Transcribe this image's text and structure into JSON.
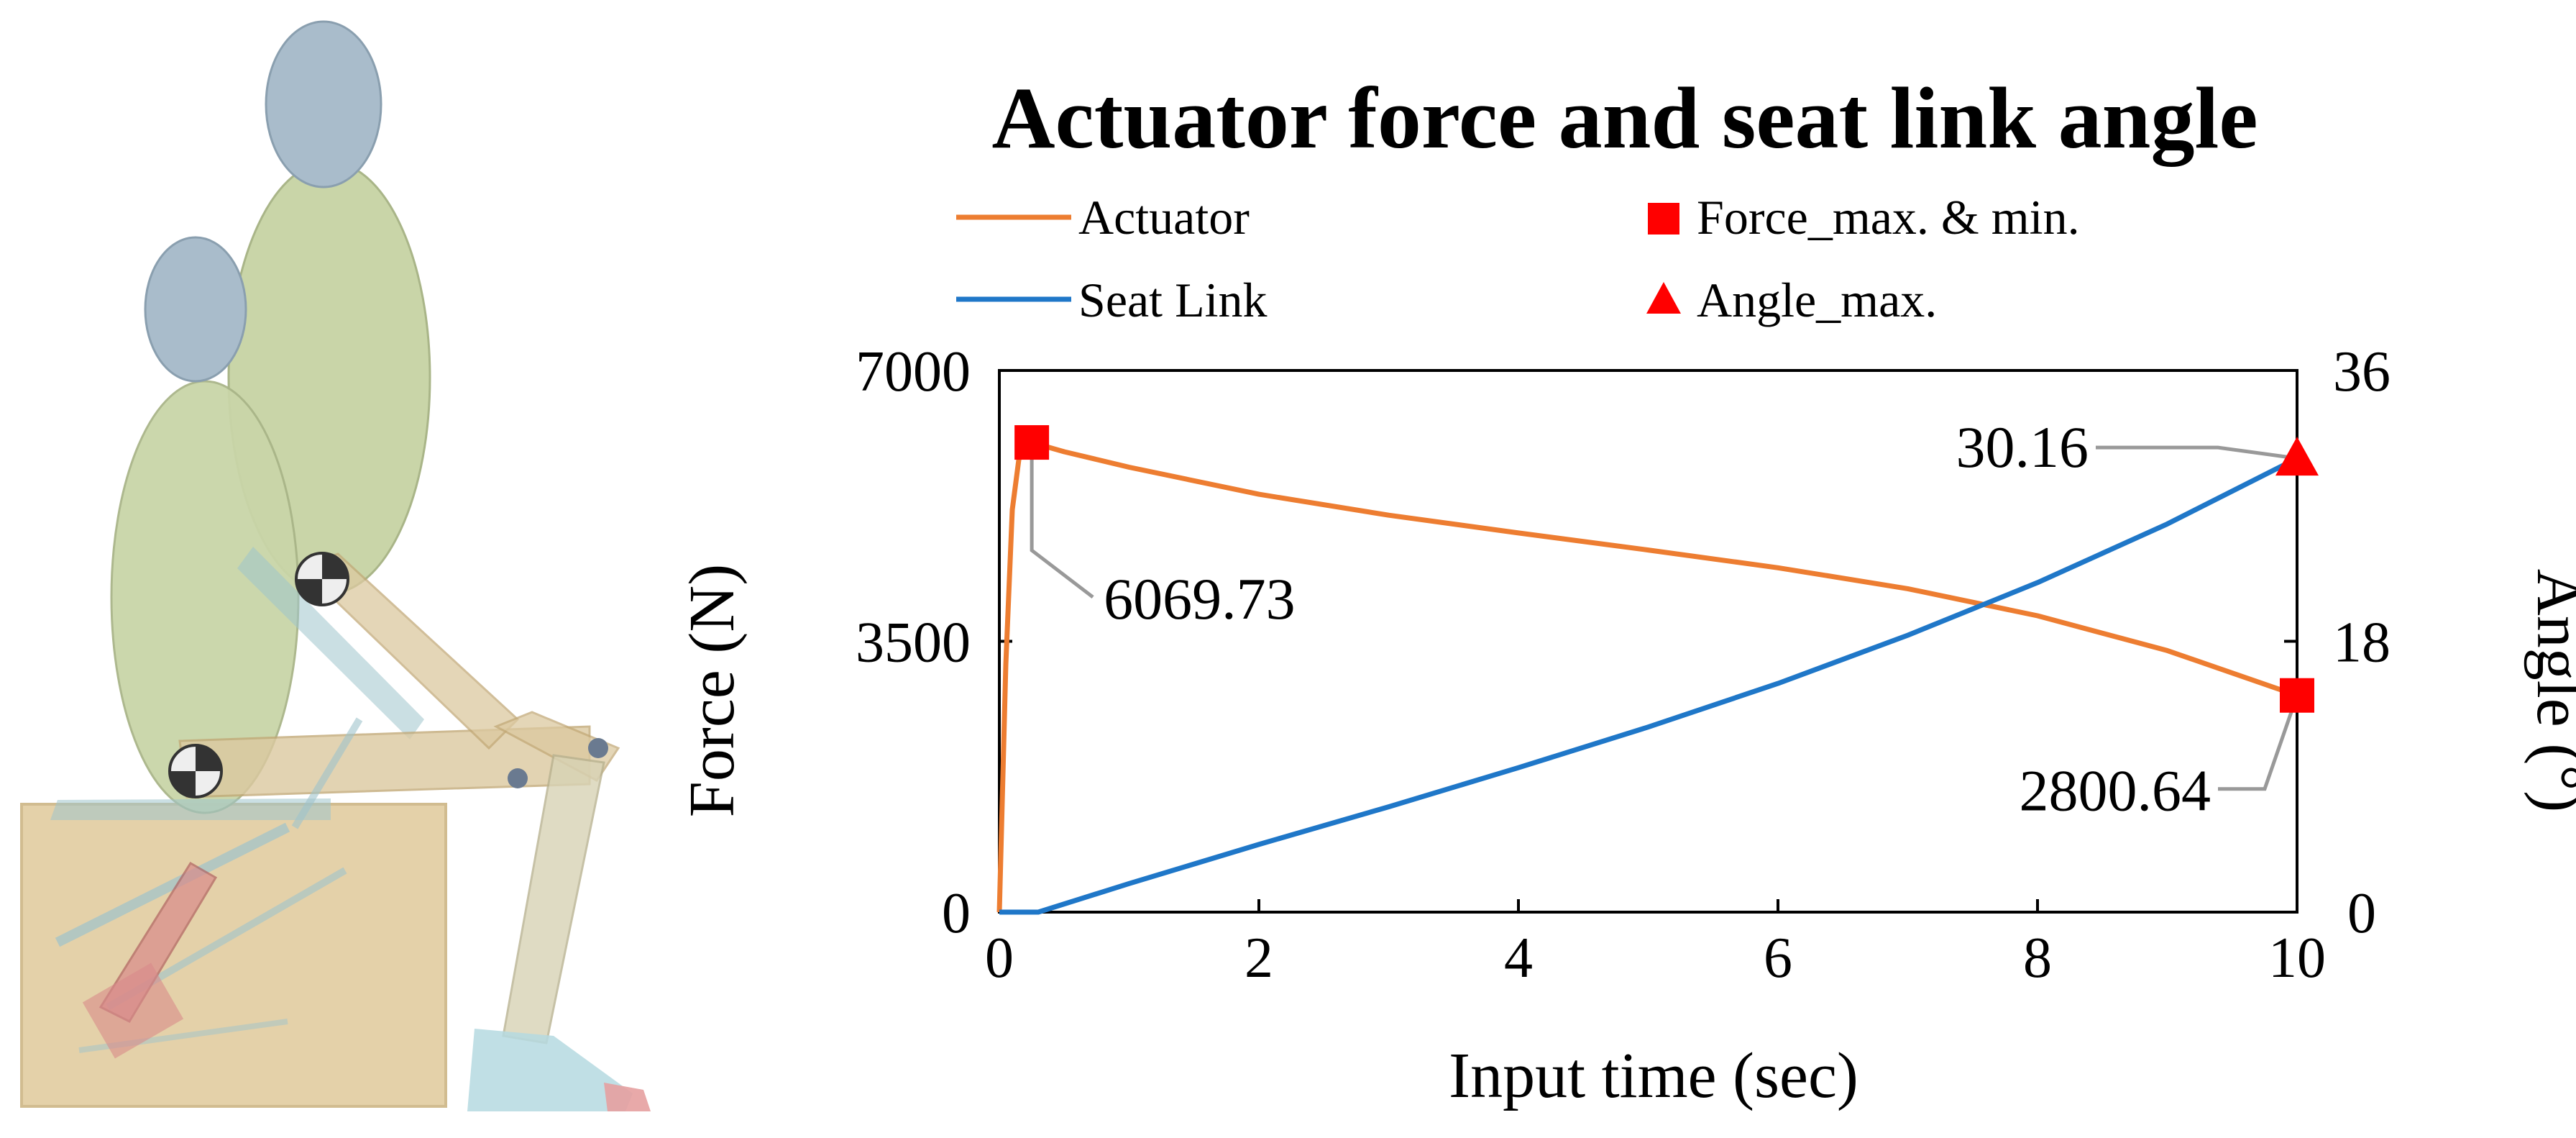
{
  "chart_data": {
    "type": "line",
    "title": "Actuator force and seat link angle",
    "xlabel": "Input time (sec)",
    "ylabel_left": "Force (N)",
    "ylabel_right": "Angle (°)",
    "xlim": [
      0,
      10
    ],
    "ylim_left": [
      0,
      7000
    ],
    "ylim_right": [
      0,
      36
    ],
    "x_ticks": [
      "0",
      "2",
      "4",
      "6",
      "8",
      "10"
    ],
    "y_ticks_left": [
      "0",
      "3500",
      "7000"
    ],
    "y_ticks_right": [
      "0",
      "18",
      "36"
    ],
    "grid": false,
    "legend_position": "top",
    "series": [
      {
        "name": "Actuator",
        "axis": "left",
        "color": "#ED7D31",
        "x": [
          0,
          0.05,
          0.1,
          0.15,
          0.2,
          0.25,
          0.5,
          1,
          2,
          3,
          4,
          5,
          6,
          7,
          8,
          9,
          10
        ],
        "y": [
          0,
          3200,
          5200,
          5850,
          6040,
          6069.73,
          5950,
          5750,
          5400,
          5130,
          4900,
          4680,
          4450,
          4180,
          3830,
          3380,
          2800.64
        ]
      },
      {
        "name": "Seat Link",
        "axis": "right",
        "color": "#1F77C8",
        "x": [
          0,
          0.3,
          1,
          2,
          3,
          4,
          5,
          6,
          7,
          8,
          9,
          10
        ],
        "y": [
          0,
          0,
          1.9,
          4.5,
          7.0,
          9.6,
          12.3,
          15.2,
          18.4,
          21.9,
          25.8,
          30.16
        ]
      }
    ],
    "markers": [
      {
        "name": "Force_max. & min.",
        "shape": "square",
        "color": "#FF0000",
        "axis": "left",
        "points": [
          [
            0.25,
            6069.73
          ],
          [
            10,
            2800.64
          ]
        ]
      },
      {
        "name": "Angle_max.",
        "shape": "triangle",
        "color": "#FF0000",
        "axis": "right",
        "points": [
          [
            10,
            30.16
          ]
        ]
      }
    ],
    "annotations": [
      {
        "text": "6069.73"
      },
      {
        "text": "2800.64"
      },
      {
        "text": "30.16"
      }
    ]
  },
  "illustration": {
    "icon": "seated-human-model-with-seat-linkage-icon",
    "colors": {
      "head": "#A9BCCB",
      "torso": "#C9D5A8",
      "limb": "#DCC9A0",
      "seat_box": "#E2CDA0",
      "link": "#9FC4CC",
      "actuator": "#D98A8A"
    }
  }
}
